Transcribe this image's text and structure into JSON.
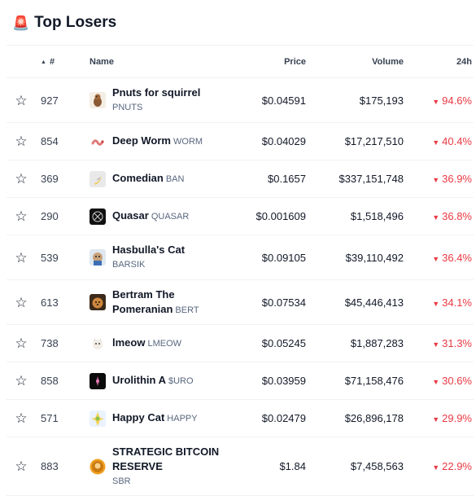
{
  "header": {
    "icon": "siren-icon",
    "title": "Top Losers"
  },
  "table": {
    "columns": {
      "rank": "#",
      "name": "Name",
      "price": "Price",
      "volume": "Volume",
      "change": "24h"
    },
    "rows": [
      {
        "rank": "927",
        "name": "Pnuts for squirrel",
        "symbol": "PNUTS",
        "symbol_break": true,
        "price": "$0.04591",
        "volume": "$175,193",
        "change": "94.6%",
        "logo": "pnuts-logo",
        "height": 55
      },
      {
        "rank": "854",
        "name": "Deep Worm",
        "symbol": "WORM",
        "symbol_break": false,
        "price": "$0.04029",
        "volume": "$17,217,510",
        "change": "40.4%",
        "logo": "worm-logo",
        "height": 46
      },
      {
        "rank": "369",
        "name": "Comedian",
        "symbol": "BAN",
        "symbol_break": false,
        "price": "$0.1657",
        "volume": "$337,151,748",
        "change": "36.9%",
        "logo": "banana-logo",
        "height": 46
      },
      {
        "rank": "290",
        "name": "Quasar",
        "symbol": "QUASAR",
        "symbol_break": false,
        "price": "$0.001609",
        "volume": "$1,518,496",
        "change": "36.8%",
        "logo": "quasar-logo",
        "height": 46
      },
      {
        "rank": "539",
        "name": "Hasbulla's Cat",
        "symbol": "BARSIK",
        "symbol_break": true,
        "price": "$0.09105",
        "volume": "$39,110,492",
        "change": "36.4%",
        "logo": "cat-logo",
        "height": 55
      },
      {
        "rank": "613",
        "name": "Bertram The Pomeranian",
        "symbol": "BERT",
        "symbol_break": false,
        "price": "$0.07534",
        "volume": "$45,446,413",
        "change": "34.1%",
        "logo": "dog-logo",
        "height": 55
      },
      {
        "rank": "738",
        "name": "lmeow",
        "symbol": "LMEOW",
        "symbol_break": false,
        "price": "$0.05245",
        "volume": "$1,887,283",
        "change": "31.3%",
        "logo": "lmeow-logo",
        "height": 46
      },
      {
        "rank": "858",
        "name": "Urolithin A",
        "symbol": "$URO",
        "symbol_break": false,
        "price": "$0.03959",
        "volume": "$71,158,476",
        "change": "30.6%",
        "logo": "uro-logo",
        "height": 46
      },
      {
        "rank": "571",
        "name": "Happy Cat",
        "symbol": "HAPPY",
        "symbol_break": false,
        "price": "$0.02479",
        "volume": "$26,896,178",
        "change": "29.9%",
        "logo": "happycat-logo",
        "height": 46
      },
      {
        "rank": "883",
        "name": "STRATEGIC BITCOIN RESERVE",
        "symbol": "SBR",
        "symbol_break": true,
        "price": "$1.84",
        "volume": "$7,458,563",
        "change": "22.9%",
        "logo": "sbr-logo",
        "height": 72
      }
    ]
  },
  "colors": {
    "negative": "#ea3943",
    "muted": "#58667e",
    "border": "#eff2f5"
  }
}
